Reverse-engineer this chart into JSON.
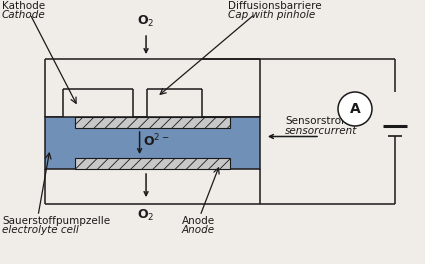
{
  "bg_color": "#f0ede8",
  "line_color": "#1a1a1a",
  "blue_fill": "#7090b8",
  "hatch_fc": "#c8c8c8",
  "white_fc": "#ffffff",
  "labels": {
    "kathode": "Kathode",
    "cathode": "Cathode",
    "diffusions": "Diffusionsbarriere",
    "cap": "Cap with pinhole",
    "sensorstrom": "Sensorstrom",
    "sensorcurrent": "sensorcurrent",
    "sauerstoff": "Sauerstoffpumpzelle",
    "electrolyte": "electrolyte cell",
    "anode_de": "Anode",
    "anode_en": "Anode",
    "A_label": "A"
  },
  "figsize": [
    4.25,
    2.64
  ],
  "dpi": 100
}
